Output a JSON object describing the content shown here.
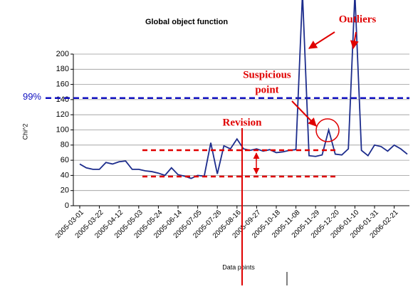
{
  "chart_data": {
    "type": "line",
    "title": "Global object function",
    "x_label": "Data points",
    "y_label": "Chi^2",
    "categories": [
      "2005-03-01",
      null,
      null,
      "2005-03-22",
      null,
      null,
      "2005-04-12",
      null,
      null,
      "2005-05-03",
      null,
      null,
      "2005-05-24",
      null,
      null,
      "2005-06-14",
      null,
      null,
      "2005-07-05",
      null,
      null,
      "2005-07-26",
      null,
      null,
      "2005-08-16",
      null,
      null,
      "2005-09-27",
      null,
      null,
      "2005-10-18",
      null,
      null,
      "2005-11-08",
      null,
      null,
      "2005-11-29",
      null,
      null,
      "2005-12-20",
      null,
      null,
      "2006-01-10",
      null,
      null,
      "2006-01-31",
      null,
      null,
      "2006-02-21",
      null,
      null
    ],
    "series": [
      {
        "name": "Chi^2",
        "color": "#1c2c8c",
        "values": [
          55,
          50,
          48,
          48,
          57,
          55,
          58,
          59,
          48,
          48,
          46,
          45,
          43,
          40,
          50,
          41,
          39,
          36,
          40,
          39,
          83,
          42,
          79,
          75,
          88,
          75,
          73,
          75,
          72,
          74,
          70,
          71,
          73,
          74,
          280,
          66,
          65,
          67,
          100,
          68,
          67,
          75,
          280,
          73,
          66,
          80,
          78,
          72,
          80,
          75,
          68
        ]
      }
    ],
    "ylim": [
      0,
      200
    ],
    "yticks": [
      0,
      20,
      40,
      60,
      80,
      100,
      120,
      140,
      160,
      180,
      200
    ],
    "grid": true,
    "reference_line": {
      "value": 142,
      "label": "99%",
      "color": "#1010c0"
    },
    "annotations": [
      "Outliers",
      "Suspicious",
      "point",
      "Revision"
    ]
  }
}
